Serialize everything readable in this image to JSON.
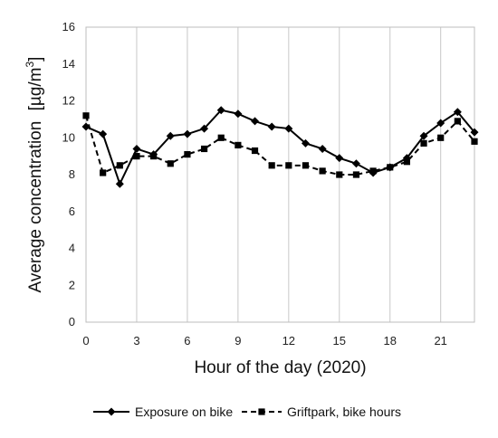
{
  "chart_data": {
    "type": "line",
    "xlabel": "Hour of the day (2020)",
    "ylabel": "Average concentration",
    "ylabel_unit": "[µg/m",
    "ylabel_unit_sup": "3",
    "ylabel_unit_close": "]",
    "xlim": [
      0,
      23
    ],
    "ylim": [
      0,
      16
    ],
    "xticks": [
      0,
      3,
      6,
      9,
      12,
      15,
      18,
      21
    ],
    "yticks": [
      0,
      2,
      4,
      6,
      8,
      10,
      12,
      14,
      16
    ],
    "grid": "vertical",
    "legend_position": "bottom",
    "x": [
      0,
      1,
      2,
      3,
      4,
      5,
      6,
      7,
      8,
      9,
      10,
      11,
      12,
      13,
      14,
      15,
      16,
      17,
      18,
      19,
      20,
      21,
      22,
      23
    ],
    "series": [
      {
        "name": "Exposure on bike",
        "line_style": "solid",
        "marker": "diamond",
        "color": "#000000",
        "values": [
          10.6,
          10.2,
          7.5,
          9.4,
          9.1,
          10.1,
          10.2,
          10.5,
          11.5,
          11.3,
          10.9,
          10.6,
          10.5,
          9.7,
          9.4,
          8.9,
          8.6,
          8.1,
          8.4,
          8.9,
          10.1,
          10.8,
          11.4,
          10.3
        ]
      },
      {
        "name": "Griftpark, bike hours",
        "line_style": "dashed",
        "marker": "square",
        "color": "#000000",
        "values": [
          11.2,
          8.1,
          8.5,
          9.0,
          9.0,
          8.6,
          9.1,
          9.4,
          10.0,
          9.6,
          9.3,
          8.5,
          8.5,
          8.5,
          8.2,
          8.0,
          8.0,
          8.2,
          8.4,
          8.7,
          9.7,
          10.0,
          10.9,
          9.8
        ]
      }
    ]
  }
}
